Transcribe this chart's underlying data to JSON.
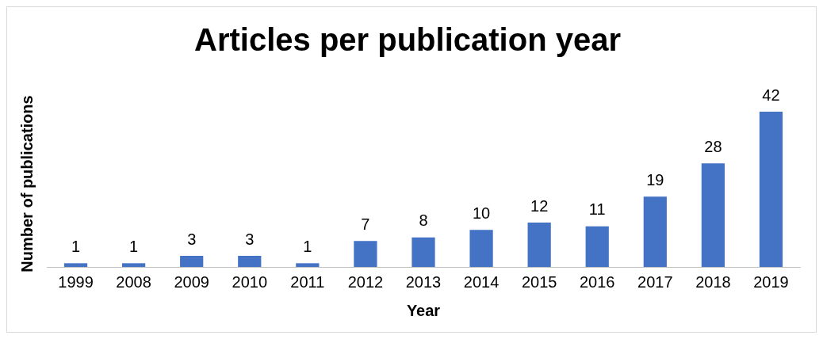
{
  "chart_data": {
    "type": "bar",
    "title": "Articles per publication year",
    "xlabel": "Year",
    "ylabel": "Number of publications",
    "categories": [
      "1999",
      "2008",
      "2009",
      "2010",
      "2011",
      "2012",
      "2013",
      "2014",
      "2015",
      "2016",
      "2017",
      "2018",
      "2019"
    ],
    "values": [
      1,
      1,
      3,
      3,
      1,
      7,
      8,
      10,
      12,
      11,
      19,
      28,
      42
    ],
    "color": "#4472c4",
    "data_labels": true,
    "grid": false,
    "legend": false
  }
}
